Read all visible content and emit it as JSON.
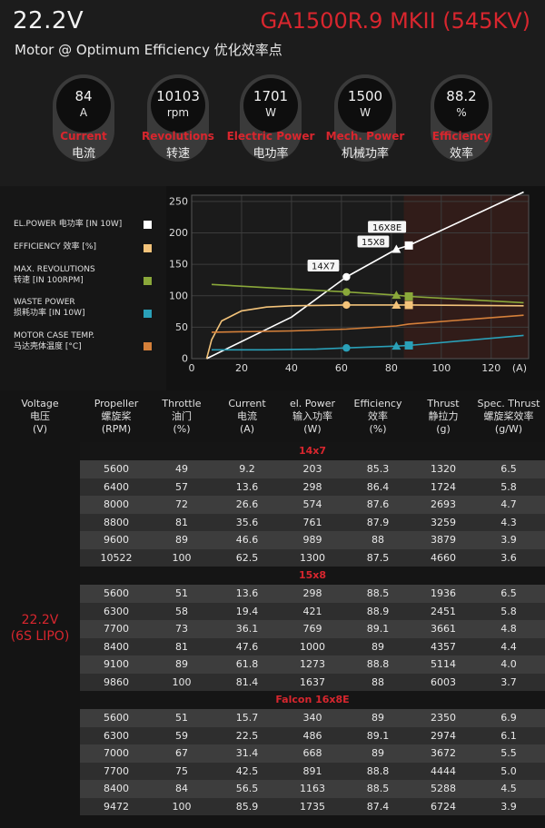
{
  "header": {
    "voltage": "22.2V",
    "model": "GA1500R.9 MKII (545KV)",
    "subtitle": "Motor @ Optimum Efficiency  优化效率点"
  },
  "metrics": [
    {
      "value": "84",
      "unit": "A",
      "label_en": "Current",
      "label_cn": "电流"
    },
    {
      "value": "10103",
      "unit": "rpm",
      "label_en": "Revolutions",
      "label_cn": "转速"
    },
    {
      "value": "1701",
      "unit": "W",
      "label_en": "Electric Power",
      "label_cn": "电功率"
    },
    {
      "value": "1500",
      "unit": "W",
      "label_en": "Mech. Power",
      "label_cn": "机械功率"
    },
    {
      "value": "88.2",
      "unit": "%",
      "label_en": "Efficiency",
      "label_cn": "效率"
    }
  ],
  "legend": [
    {
      "line1": "EL.POWER 电功率 [IN 10W]",
      "line2": "",
      "color": "#ffffff"
    },
    {
      "line1": "EFFICIENCY 效率 [%]",
      "line2": "",
      "color": "#f3c37a"
    },
    {
      "line1": "MAX. REVOLUTIONS",
      "line2": "转速 [IN 100RPM]",
      "color": "#8aa83a"
    },
    {
      "line1": "WASTE POWER",
      "line2": "损耗功率 [IN 10W]",
      "color": "#2aa0b8"
    },
    {
      "line1": "MOTOR CASE TEMP.",
      "line2": "马达壳体温度 [°C]",
      "color": "#d5803a"
    }
  ],
  "chart_data": {
    "type": "line",
    "x_unit": "(A)",
    "xlim": [
      0,
      135
    ],
    "ylim": [
      0,
      260
    ],
    "x_ticks": [
      0,
      20,
      40,
      60,
      80,
      100,
      120
    ],
    "y_ticks": [
      0,
      50,
      100,
      150,
      200,
      250
    ],
    "shaded_from_x": 85,
    "series": [
      {
        "name": "EL.POWER 电功率 [IN 10W]",
        "color": "#ffffff",
        "x": [
          6,
          40,
          62,
          82,
          87,
          133
        ],
        "y": [
          0,
          66,
          130,
          174,
          180,
          265
        ]
      },
      {
        "name": "EFFICIENCY 效率 [%]",
        "color": "#f3c37a",
        "x": [
          6,
          8,
          12,
          20,
          30,
          40,
          62,
          82,
          87,
          133
        ],
        "y": [
          0,
          30,
          60,
          76,
          82,
          84,
          85.3,
          85.3,
          85.3,
          84
        ]
      },
      {
        "name": "MAX. REVOLUTIONS",
        "color": "#8aa83a",
        "x": [
          8,
          30,
          62,
          82,
          87,
          133
        ],
        "y": [
          118,
          113,
          106,
          101,
          99,
          89
        ]
      },
      {
        "name": "WASTE POWER",
        "color": "#2aa0b8",
        "x": [
          8,
          30,
          50,
          62,
          82,
          87,
          133
        ],
        "y": [
          14,
          14,
          15,
          17,
          20,
          21,
          37
        ]
      },
      {
        "name": "MOTOR CASE TEMP.",
        "color": "#d5803a",
        "x": [
          8,
          40,
          62,
          82,
          87,
          133
        ],
        "y": [
          42,
          44,
          47,
          52,
          55,
          69
        ]
      }
    ],
    "markers": [
      {
        "label": "14X7",
        "x": 62,
        "series": [
          "circle",
          "circle",
          "circle",
          "circle"
        ],
        "ys": [
          130,
          85.3,
          106,
          17
        ]
      },
      {
        "label": "15X8",
        "x": 82,
        "series": [
          "triangle",
          "triangle",
          "triangle",
          "triangle"
        ],
        "ys": [
          174,
          85.3,
          101,
          20
        ]
      },
      {
        "label": "16X8E",
        "x": 87,
        "series": [
          "square",
          "square",
          "square",
          "square"
        ],
        "ys": [
          180,
          85.3,
          99,
          21
        ]
      }
    ]
  },
  "table": {
    "headers": [
      {
        "l1": "Voltage",
        "l2": "电压",
        "l3": "(V)"
      },
      {
        "l1": "Propeller",
        "l2": "螺旋桨",
        "l3": "(RPM)"
      },
      {
        "l1": "Throttle",
        "l2": "油门",
        "l3": "(%)"
      },
      {
        "l1": "Current",
        "l2": "电流",
        "l3": "(A)"
      },
      {
        "l1": "el. Power",
        "l2": "输入功率",
        "l3": "(W)"
      },
      {
        "l1": "Efficiency",
        "l2": "效率",
        "l3": "(%)"
      },
      {
        "l1": "Thrust",
        "l2": "静拉力",
        "l3": "(g)"
      },
      {
        "l1": "Spec. Thrust",
        "l2": "螺旋桨效率",
        "l3": "(g/W)"
      }
    ],
    "voltage_label": {
      "l1": "22.2V",
      "l2": "(6S LIPO)"
    },
    "groups": [
      {
        "name": "14x7",
        "rows": [
          [
            "5600",
            "49",
            "9.2",
            "203",
            "85.3",
            "1320",
            "6.5"
          ],
          [
            "6400",
            "57",
            "13.6",
            "298",
            "86.4",
            "1724",
            "5.8"
          ],
          [
            "8000",
            "72",
            "26.6",
            "574",
            "87.6",
            "2693",
            "4.7"
          ],
          [
            "8800",
            "81",
            "35.6",
            "761",
            "87.9",
            "3259",
            "4.3"
          ],
          [
            "9600",
            "89",
            "46.6",
            "989",
            "88",
            "3879",
            "3.9"
          ],
          [
            "10522",
            "100",
            "62.5",
            "1300",
            "87.5",
            "4660",
            "3.6"
          ]
        ]
      },
      {
        "name": "15x8",
        "rows": [
          [
            "5600",
            "51",
            "13.6",
            "298",
            "88.5",
            "1936",
            "6.5"
          ],
          [
            "6300",
            "58",
            "19.4",
            "421",
            "88.9",
            "2451",
            "5.8"
          ],
          [
            "7700",
            "73",
            "36.1",
            "769",
            "89.1",
            "3661",
            "4.8"
          ],
          [
            "8400",
            "81",
            "47.6",
            "1000",
            "89",
            "4357",
            "4.4"
          ],
          [
            "9100",
            "89",
            "61.8",
            "1273",
            "88.8",
            "5114",
            "4.0"
          ],
          [
            "9860",
            "100",
            "81.4",
            "1637",
            "88",
            "6003",
            "3.7"
          ]
        ]
      },
      {
        "name": "Falcon 16x8E",
        "rows": [
          [
            "5600",
            "51",
            "15.7",
            "340",
            "89",
            "2350",
            "6.9"
          ],
          [
            "6300",
            "59",
            "22.5",
            "486",
            "89.1",
            "2974",
            "6.1"
          ],
          [
            "7000",
            "67",
            "31.4",
            "668",
            "89",
            "3672",
            "5.5"
          ],
          [
            "7700",
            "75",
            "42.5",
            "891",
            "88.8",
            "4444",
            "5.0"
          ],
          [
            "8400",
            "84",
            "56.5",
            "1163",
            "88.5",
            "5288",
            "4.5"
          ],
          [
            "9472",
            "100",
            "85.9",
            "1735",
            "87.4",
            "6724",
            "3.9"
          ]
        ]
      }
    ]
  }
}
